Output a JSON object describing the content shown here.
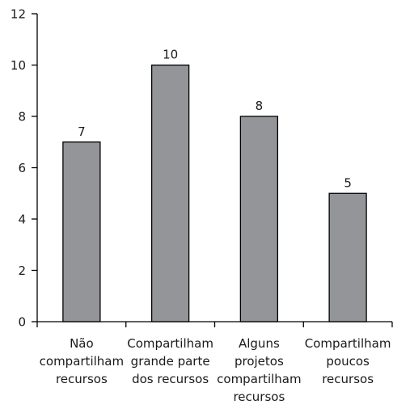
{
  "chart_data": {
    "type": "bar",
    "title": "",
    "xlabel": "",
    "ylabel": "",
    "categories": [
      [
        "Não",
        "compartilham",
        "recursos"
      ],
      [
        "Compartilham",
        "grande parte",
        "dos recursos"
      ],
      [
        "Alguns",
        "projetos",
        "compartilham",
        "recursos"
      ],
      [
        "Compartilham",
        "poucos",
        "recursos"
      ]
    ],
    "values": [
      7,
      10,
      8,
      5
    ],
    "value_labels": [
      "7",
      "10",
      "8",
      "5"
    ],
    "ylim": [
      0,
      12
    ],
    "yticks": [
      0,
      2,
      4,
      6,
      8,
      10,
      12
    ],
    "ytick_labels": [
      "0",
      "2",
      "4",
      "6",
      "8",
      "10",
      "12"
    ],
    "grid": false,
    "legend": "none",
    "bar_color": "#939598",
    "edge_color": "#000000"
  }
}
